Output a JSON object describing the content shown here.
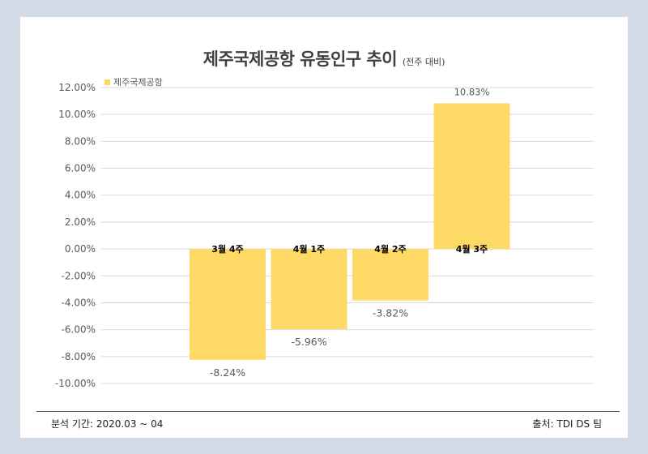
{
  "header": {
    "title": "제주국제공항 유동인구 추이",
    "subtitle": "(전주 대비)"
  },
  "chart_data": {
    "type": "bar",
    "title": "제주국제공항 유동인구 추이",
    "subtitle": "(전주 대비)",
    "categories": [
      "3월 4주",
      "4월 1주",
      "4월 2주",
      "4월 3주"
    ],
    "series": [
      {
        "name": "제주국제공항",
        "values": [
          -8.24,
          -5.96,
          -3.82,
          10.83
        ],
        "value_labels": [
          "-8.24%",
          "-5.96%",
          "-3.82%",
          "10.83%"
        ]
      }
    ],
    "ylim": [
      -10,
      12
    ],
    "yticks": [
      "-10.00%",
      "-8.00%",
      "-6.00%",
      "-4.00%",
      "-2.00%",
      "0.00%",
      "2.00%",
      "4.00%",
      "6.00%",
      "8.00%",
      "10.00%",
      "12.00%"
    ],
    "grid": true,
    "legend": "top-left",
    "colors": {
      "bar": "#ffd966",
      "grid": "#d9d9d9",
      "axis_text": "#595959"
    }
  },
  "footer": {
    "left": "분석 기간: 2020.03 ~ 04",
    "right": "출처: TDI DS 팀"
  }
}
